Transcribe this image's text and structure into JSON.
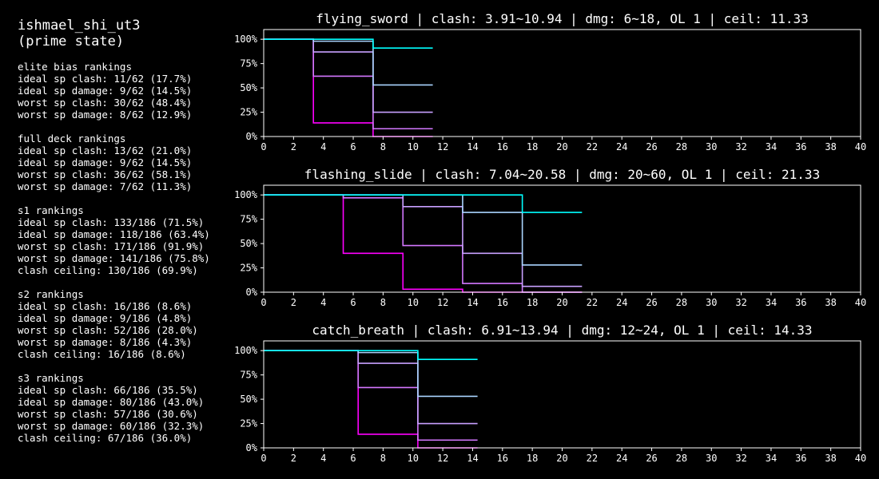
{
  "character": {
    "name": "ishmael_shi_ut3",
    "state": "(prime state)"
  },
  "rankings": [
    {
      "title": "elite bias rankings",
      "lines": [
        "ideal sp clash: 11/62 (17.7%)",
        "ideal sp damage: 9/62 (14.5%)",
        "worst sp clash: 30/62 (48.4%)",
        "worst sp damage: 8/62 (12.9%)"
      ]
    },
    {
      "title": "full deck rankings",
      "lines": [
        "ideal sp clash: 13/62 (21.0%)",
        "ideal sp damage: 9/62 (14.5%)",
        "worst sp clash: 36/62 (58.1%)",
        "worst sp damage: 7/62 (11.3%)"
      ]
    },
    {
      "title": "s1 rankings",
      "lines": [
        "ideal sp clash: 133/186 (71.5%)",
        "ideal sp damage: 118/186 (63.4%)",
        "worst sp clash: 171/186 (91.9%)",
        "worst sp damage: 141/186 (75.8%)",
        "clash ceiling: 130/186 (69.9%)"
      ]
    },
    {
      "title": "s2 rankings",
      "lines": [
        "ideal sp clash: 16/186 (8.6%)",
        "ideal sp damage: 9/186 (4.8%)",
        "worst sp clash: 52/186 (28.0%)",
        "worst sp damage: 8/186 (4.3%)",
        "clash ceiling: 16/186 (8.6%)"
      ]
    },
    {
      "title": "s3 rankings",
      "lines": [
        "ideal sp clash: 66/186 (35.5%)",
        "ideal sp damage: 80/186 (43.0%)",
        "worst sp clash: 57/186 (30.6%)",
        "worst sp damage: 60/186 (32.3%)",
        "clash ceiling: 67/186 (36.0%)"
      ]
    }
  ],
  "chart_data": [
    {
      "type": "line",
      "step": true,
      "title": "flying_sword | clash: 3.91~10.94 | dmg: 6~18, OL 1 | ceil: 11.33",
      "xlim": [
        0,
        40
      ],
      "ylim": [
        0,
        1.1
      ],
      "xticks": [
        0,
        2,
        4,
        6,
        8,
        10,
        12,
        14,
        16,
        18,
        20,
        22,
        24,
        26,
        28,
        30,
        32,
        34,
        36,
        38,
        40
      ],
      "yticks": [
        0,
        0.25,
        0.5,
        0.75,
        1.0
      ],
      "ytick_labels": [
        "0%",
        "25%",
        "50%",
        "75%",
        "100%"
      ],
      "grid": false,
      "series": [
        {
          "color": "#ff00ff",
          "x": [
            0,
            3.33,
            3.33,
            7.33,
            7.33,
            11.33
          ],
          "y": [
            1.0,
            1.0,
            0.14,
            0.14,
            0.0,
            0.0
          ]
        },
        {
          "color": "#d477ff",
          "x": [
            0,
            3.33,
            3.33,
            7.33,
            7.33,
            11.33
          ],
          "y": [
            1.0,
            1.0,
            0.62,
            0.62,
            0.08,
            0.08
          ]
        },
        {
          "color": "#c8a0ff",
          "x": [
            0,
            3.33,
            3.33,
            7.33,
            7.33,
            11.33
          ],
          "y": [
            1.0,
            1.0,
            0.87,
            0.87,
            0.25,
            0.25
          ]
        },
        {
          "color": "#aad4ff",
          "x": [
            0,
            3.33,
            3.33,
            7.33,
            7.33,
            11.33
          ],
          "y": [
            1.0,
            1.0,
            0.98,
            0.98,
            0.53,
            0.53
          ]
        },
        {
          "color": "#00ffff",
          "x": [
            0,
            7.33,
            7.33,
            11.33
          ],
          "y": [
            1.0,
            1.0,
            0.91,
            0.91
          ]
        }
      ]
    },
    {
      "type": "line",
      "step": true,
      "title": "flashing_slide | clash: 7.04~20.58 | dmg: 20~60, OL 1 | ceil: 21.33",
      "xlim": [
        0,
        40
      ],
      "ylim": [
        0,
        1.1
      ],
      "xticks": [
        0,
        2,
        4,
        6,
        8,
        10,
        12,
        14,
        16,
        18,
        20,
        22,
        24,
        26,
        28,
        30,
        32,
        34,
        36,
        38,
        40
      ],
      "yticks": [
        0,
        0.25,
        0.5,
        0.75,
        1.0
      ],
      "ytick_labels": [
        "0%",
        "25%",
        "50%",
        "75%",
        "100%"
      ],
      "grid": false,
      "series": [
        {
          "color": "#ff00ff",
          "x": [
            0,
            5.33,
            5.33,
            9.33,
            9.33,
            13.33,
            13.33,
            17.33,
            17.33,
            21.33
          ],
          "y": [
            1.0,
            1.0,
            0.4,
            0.4,
            0.03,
            0.03,
            0.0,
            0.0,
            0.0,
            0.0
          ]
        },
        {
          "color": "#d477ff",
          "x": [
            0,
            5.33,
            5.33,
            9.33,
            9.33,
            13.33,
            13.33,
            17.33,
            17.33,
            21.33
          ],
          "y": [
            1.0,
            1.0,
            0.97,
            0.97,
            0.48,
            0.48,
            0.09,
            0.09,
            0.0,
            0.0
          ]
        },
        {
          "color": "#c8a0ff",
          "x": [
            0,
            9.33,
            9.33,
            13.33,
            13.33,
            17.33,
            17.33,
            21.33
          ],
          "y": [
            1.0,
            1.0,
            0.88,
            0.88,
            0.4,
            0.4,
            0.06,
            0.06
          ]
        },
        {
          "color": "#aad4ff",
          "x": [
            0,
            13.33,
            13.33,
            17.33,
            17.33,
            21.33
          ],
          "y": [
            1.0,
            1.0,
            0.82,
            0.82,
            0.28,
            0.28
          ]
        },
        {
          "color": "#00ffff",
          "x": [
            0,
            17.33,
            17.33,
            21.33
          ],
          "y": [
            1.0,
            1.0,
            0.82,
            0.82
          ]
        }
      ]
    },
    {
      "type": "line",
      "step": true,
      "title": "catch_breath | clash: 6.91~13.94 | dmg: 12~24, OL 1 | ceil: 14.33",
      "xlim": [
        0,
        40
      ],
      "ylim": [
        0,
        1.1
      ],
      "xticks": [
        0,
        2,
        4,
        6,
        8,
        10,
        12,
        14,
        16,
        18,
        20,
        22,
        24,
        26,
        28,
        30,
        32,
        34,
        36,
        38,
        40
      ],
      "yticks": [
        0,
        0.25,
        0.5,
        0.75,
        1.0
      ],
      "ytick_labels": [
        "0%",
        "25%",
        "50%",
        "75%",
        "100%"
      ],
      "grid": false,
      "series": [
        {
          "color": "#ff00ff",
          "x": [
            0,
            6.33,
            6.33,
            10.33,
            10.33,
            14.33
          ],
          "y": [
            1.0,
            1.0,
            0.14,
            0.14,
            0.0,
            0.0
          ]
        },
        {
          "color": "#d477ff",
          "x": [
            0,
            6.33,
            6.33,
            10.33,
            10.33,
            14.33
          ],
          "y": [
            1.0,
            1.0,
            0.62,
            0.62,
            0.08,
            0.08
          ]
        },
        {
          "color": "#c8a0ff",
          "x": [
            0,
            6.33,
            6.33,
            10.33,
            10.33,
            14.33
          ],
          "y": [
            1.0,
            1.0,
            0.87,
            0.87,
            0.25,
            0.25
          ]
        },
        {
          "color": "#aad4ff",
          "x": [
            0,
            6.33,
            6.33,
            10.33,
            10.33,
            14.33
          ],
          "y": [
            1.0,
            1.0,
            0.98,
            0.98,
            0.53,
            0.53
          ]
        },
        {
          "color": "#00ffff",
          "x": [
            0,
            10.33,
            10.33,
            14.33
          ],
          "y": [
            1.0,
            1.0,
            0.91,
            0.91
          ]
        }
      ]
    }
  ]
}
